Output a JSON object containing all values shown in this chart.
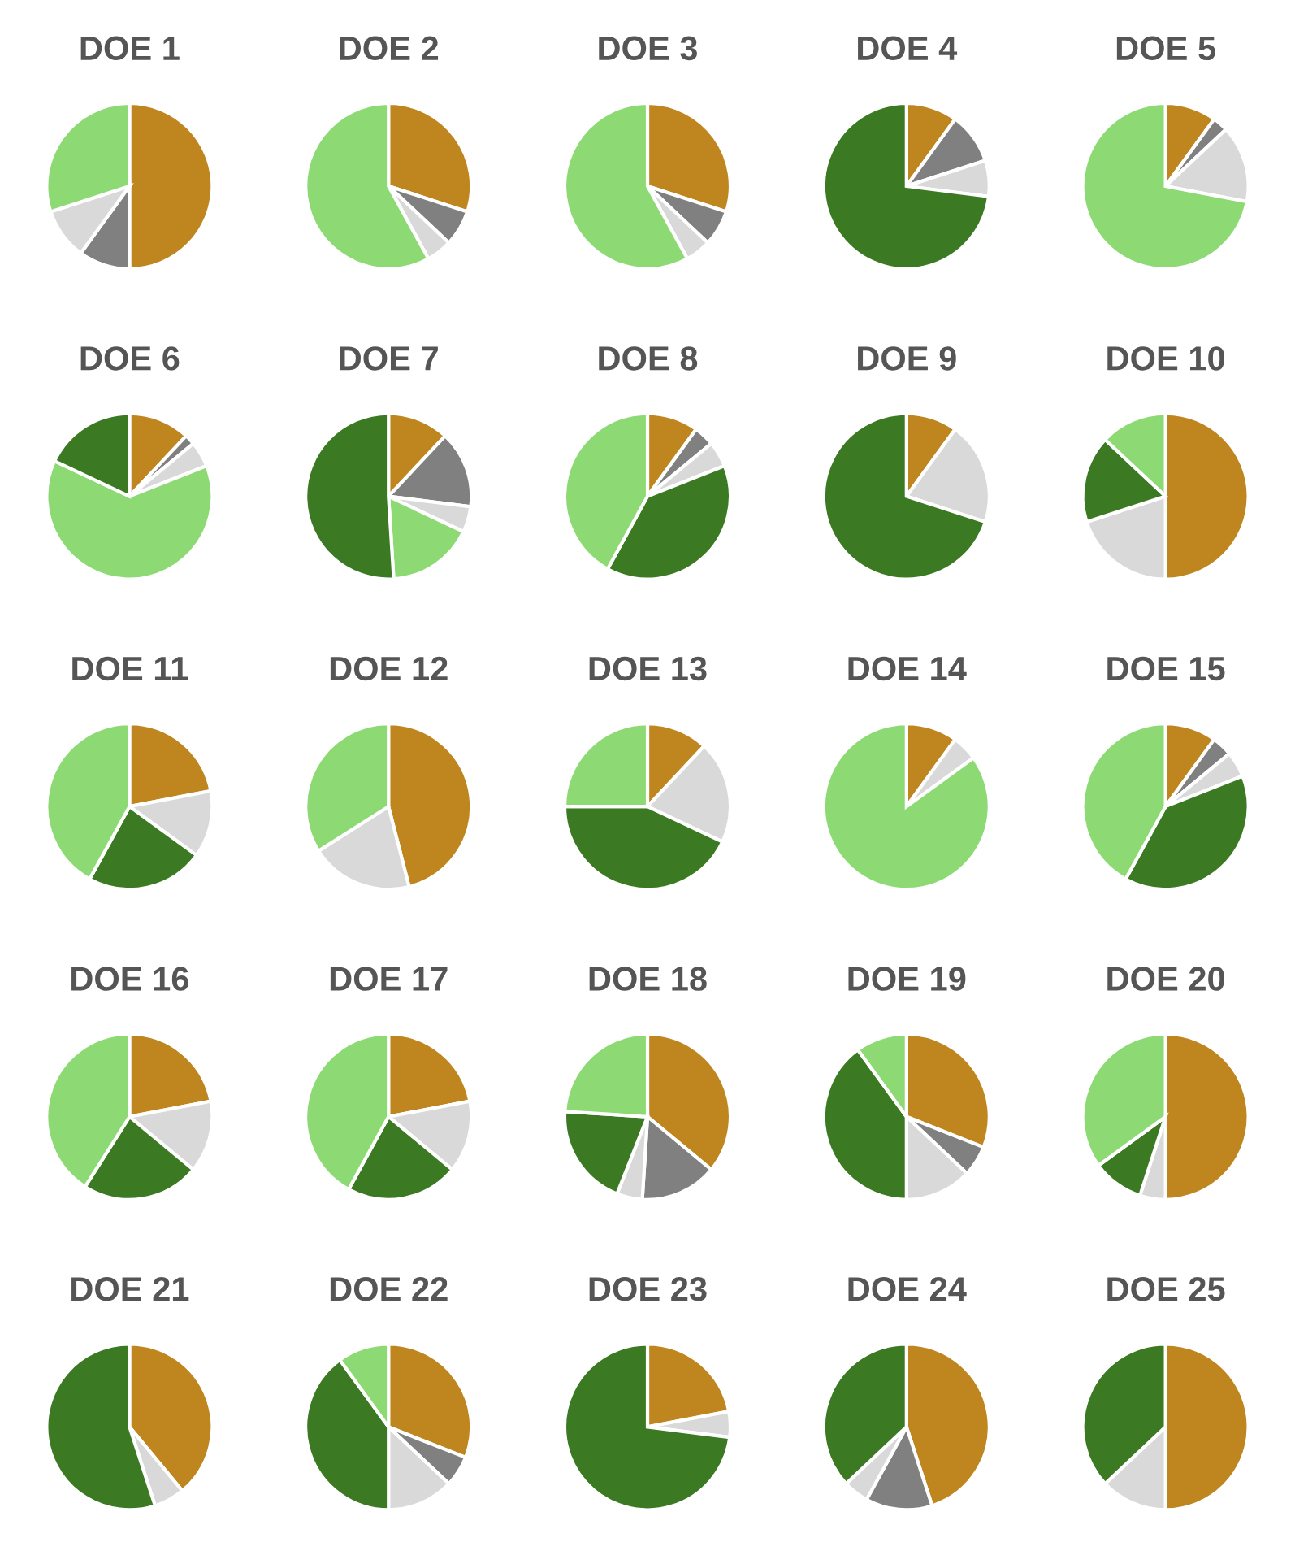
{
  "chart_data": [
    {
      "type": "pie",
      "title": "DOE 1",
      "categories": [
        null,
        null,
        null,
        null
      ],
      "values": [
        50,
        10,
        10,
        30
      ],
      "colors": [
        "#bf8620",
        "#808080",
        "#d9d9d9",
        "#8dda75"
      ]
    },
    {
      "type": "pie",
      "title": "DOE 2",
      "categories": [
        null,
        null,
        null,
        null
      ],
      "values": [
        30,
        7,
        5,
        58
      ],
      "colors": [
        "#bf8620",
        "#808080",
        "#d9d9d9",
        "#8dda75"
      ]
    },
    {
      "type": "pie",
      "title": "DOE 3",
      "categories": [
        null,
        null,
        null,
        null
      ],
      "values": [
        30,
        7,
        5,
        58
      ],
      "colors": [
        "#bf8620",
        "#808080",
        "#d9d9d9",
        "#8dda75"
      ]
    },
    {
      "type": "pie",
      "title": "DOE 4",
      "categories": [
        null,
        null,
        null,
        null
      ],
      "values": [
        10,
        10,
        7,
        73
      ],
      "colors": [
        "#bf8620",
        "#808080",
        "#d9d9d9",
        "#3b7a23"
      ]
    },
    {
      "type": "pie",
      "title": "DOE 5",
      "categories": [
        null,
        null,
        null,
        null
      ],
      "values": [
        10,
        3,
        15,
        72
      ],
      "colors": [
        "#bf8620",
        "#808080",
        "#d9d9d9",
        "#8dda75"
      ]
    },
    {
      "type": "pie",
      "title": "DOE 6",
      "categories": [
        null,
        null,
        null,
        null,
        null
      ],
      "values": [
        12,
        2,
        5,
        63,
        18
      ],
      "colors": [
        "#bf8620",
        "#808080",
        "#d9d9d9",
        "#8dda75",
        "#3b7a23"
      ]
    },
    {
      "type": "pie",
      "title": "DOE 7",
      "categories": [
        null,
        null,
        null,
        null,
        null
      ],
      "values": [
        12,
        15,
        5,
        17,
        51
      ],
      "colors": [
        "#bf8620",
        "#808080",
        "#d9d9d9",
        "#8dda75",
        "#3b7a23"
      ]
    },
    {
      "type": "pie",
      "title": "DOE 8",
      "categories": [
        null,
        null,
        null,
        null,
        null
      ],
      "values": [
        10,
        4,
        5,
        39,
        42
      ],
      "colors": [
        "#bf8620",
        "#808080",
        "#d9d9d9",
        "#3b7a23",
        "#8dda75"
      ]
    },
    {
      "type": "pie",
      "title": "DOE 9",
      "categories": [
        null,
        null,
        null
      ],
      "values": [
        10,
        20,
        70
      ],
      "colors": [
        "#bf8620",
        "#d9d9d9",
        "#3b7a23"
      ]
    },
    {
      "type": "pie",
      "title": "DOE 10",
      "categories": [
        null,
        null,
        null,
        null
      ],
      "values": [
        50,
        20,
        17,
        13
      ],
      "colors": [
        "#bf8620",
        "#d9d9d9",
        "#3b7a23",
        "#8dda75"
      ]
    },
    {
      "type": "pie",
      "title": "DOE 11",
      "categories": [
        null,
        null,
        null,
        null
      ],
      "values": [
        22,
        13,
        23,
        42
      ],
      "colors": [
        "#bf8620",
        "#d9d9d9",
        "#3b7a23",
        "#8dda75"
      ]
    },
    {
      "type": "pie",
      "title": "DOE 12",
      "categories": [
        null,
        null,
        null
      ],
      "values": [
        46,
        20,
        34
      ],
      "colors": [
        "#bf8620",
        "#d9d9d9",
        "#8dda75"
      ]
    },
    {
      "type": "pie",
      "title": "DOE 13",
      "categories": [
        null,
        null,
        null,
        null
      ],
      "values": [
        12,
        20,
        43,
        25
      ],
      "colors": [
        "#bf8620",
        "#d9d9d9",
        "#3b7a23",
        "#8dda75"
      ]
    },
    {
      "type": "pie",
      "title": "DOE 14",
      "categories": [
        null,
        null,
        null
      ],
      "values": [
        10,
        5,
        85
      ],
      "colors": [
        "#bf8620",
        "#d9d9d9",
        "#8dda75"
      ]
    },
    {
      "type": "pie",
      "title": "DOE 15",
      "categories": [
        null,
        null,
        null,
        null,
        null
      ],
      "values": [
        10,
        4,
        5,
        39,
        42
      ],
      "colors": [
        "#bf8620",
        "#808080",
        "#d9d9d9",
        "#3b7a23",
        "#8dda75"
      ]
    },
    {
      "type": "pie",
      "title": "DOE 16",
      "categories": [
        null,
        null,
        null,
        null
      ],
      "values": [
        22,
        14,
        23,
        41
      ],
      "colors": [
        "#bf8620",
        "#d9d9d9",
        "#3b7a23",
        "#8dda75"
      ]
    },
    {
      "type": "pie",
      "title": "DOE 17",
      "categories": [
        null,
        null,
        null,
        null
      ],
      "values": [
        22,
        14,
        22,
        42
      ],
      "colors": [
        "#bf8620",
        "#d9d9d9",
        "#3b7a23",
        "#8dda75"
      ]
    },
    {
      "type": "pie",
      "title": "DOE 18",
      "categories": [
        null,
        null,
        null,
        null,
        null
      ],
      "values": [
        36,
        15,
        5,
        20,
        24
      ],
      "colors": [
        "#bf8620",
        "#808080",
        "#d9d9d9",
        "#3b7a23",
        "#8dda75"
      ]
    },
    {
      "type": "pie",
      "title": "DOE 19",
      "categories": [
        null,
        null,
        null,
        null,
        null
      ],
      "values": [
        31,
        6,
        13,
        40,
        10
      ],
      "colors": [
        "#bf8620",
        "#808080",
        "#d9d9d9",
        "#3b7a23",
        "#8dda75"
      ]
    },
    {
      "type": "pie",
      "title": "DOE 20",
      "categories": [
        null,
        null,
        null,
        null
      ],
      "values": [
        50,
        5,
        10,
        35
      ],
      "colors": [
        "#bf8620",
        "#d9d9d9",
        "#3b7a23",
        "#8dda75"
      ]
    },
    {
      "type": "pie",
      "title": "DOE 21",
      "categories": [
        null,
        null,
        null
      ],
      "values": [
        39,
        6,
        55
      ],
      "colors": [
        "#bf8620",
        "#d9d9d9",
        "#3b7a23"
      ]
    },
    {
      "type": "pie",
      "title": "DOE 22",
      "categories": [
        null,
        null,
        null,
        null,
        null
      ],
      "values": [
        31,
        6,
        13,
        40,
        10
      ],
      "colors": [
        "#bf8620",
        "#808080",
        "#d9d9d9",
        "#3b7a23",
        "#8dda75"
      ]
    },
    {
      "type": "pie",
      "title": "DOE 23",
      "categories": [
        null,
        null,
        null
      ],
      "values": [
        22,
        5,
        73
      ],
      "colors": [
        "#bf8620",
        "#d9d9d9",
        "#3b7a23"
      ]
    },
    {
      "type": "pie",
      "title": "DOE 24",
      "categories": [
        null,
        null,
        null,
        null
      ],
      "values": [
        45,
        13,
        5,
        37
      ],
      "colors": [
        "#bf8620",
        "#808080",
        "#d9d9d9",
        "#3b7a23"
      ]
    },
    {
      "type": "pie",
      "title": "DOE 25",
      "categories": [
        null,
        null,
        null
      ],
      "values": [
        50,
        13,
        37
      ],
      "colors": [
        "#bf8620",
        "#d9d9d9",
        "#3b7a23"
      ]
    }
  ]
}
